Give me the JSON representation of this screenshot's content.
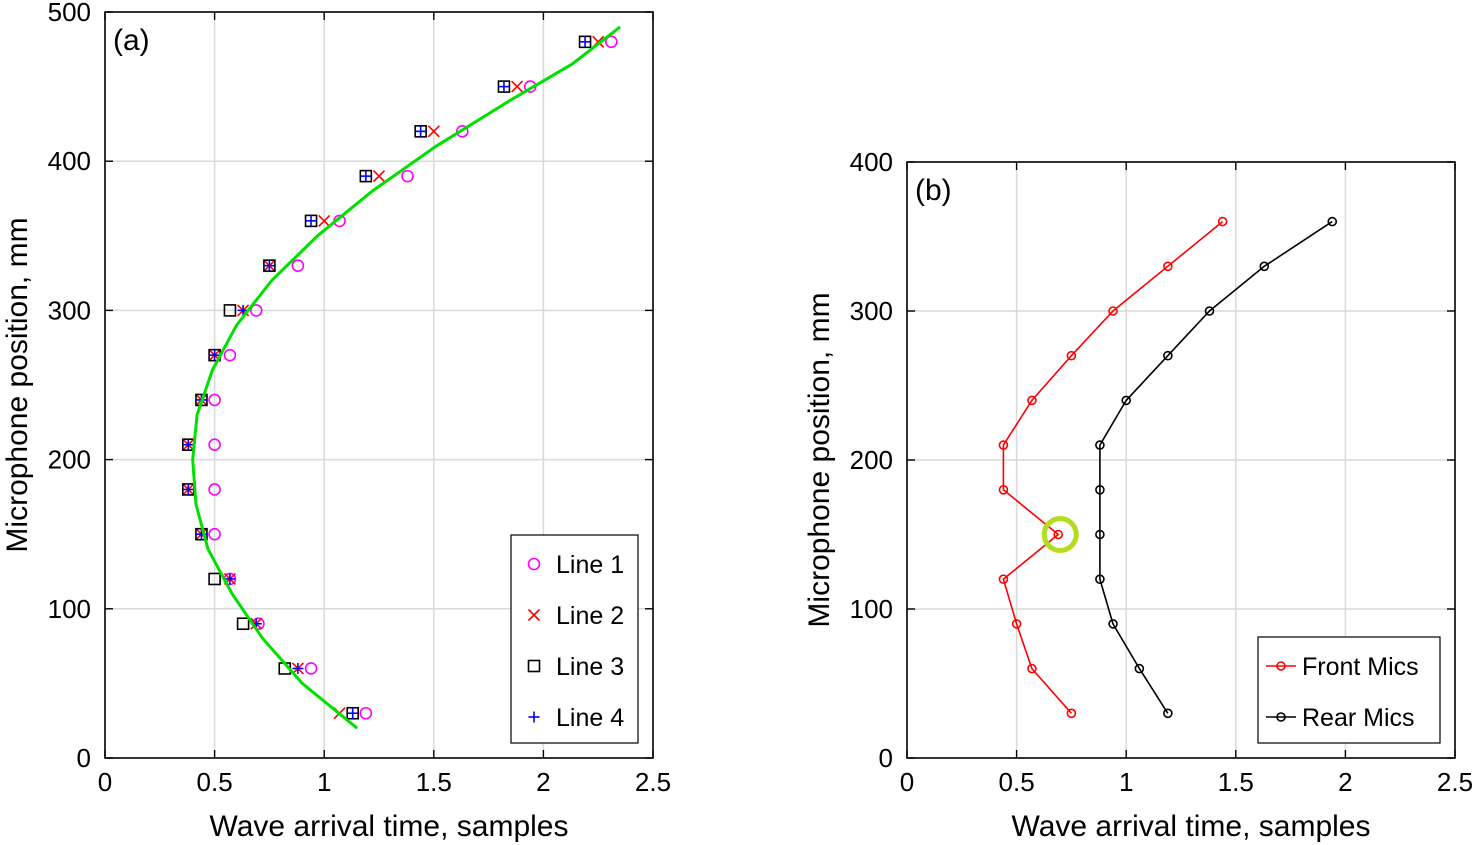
{
  "chart_data": [
    {
      "type": "scatter",
      "panel_label": "(a)",
      "xlabel": "Wave arrival  time, samples",
      "ylabel": "Microphone position, mm",
      "xlim": [
        0,
        2.5
      ],
      "ylim": [
        0,
        500
      ],
      "xticks": [
        "0",
        "0.5",
        "1",
        "1.5",
        "2",
        "2.5"
      ],
      "yticks": [
        "0",
        "100",
        "200",
        "300",
        "400",
        "500"
      ],
      "grid": true,
      "legend_position": "bottom-right",
      "series": [
        {
          "name": "Line 1",
          "marker": "circle",
          "color": "#ff00ff",
          "points": [
            [
              1.19,
              30
            ],
            [
              0.94,
              60
            ],
            [
              0.7,
              90
            ],
            [
              0.57,
              120
            ],
            [
              0.5,
              150
            ],
            [
              0.5,
              180
            ],
            [
              0.5,
              210
            ],
            [
              0.5,
              240
            ],
            [
              0.57,
              270
            ],
            [
              0.69,
              300
            ],
            [
              0.88,
              330
            ],
            [
              1.07,
              360
            ],
            [
              1.38,
              390
            ],
            [
              1.63,
              420
            ],
            [
              1.94,
              450
            ],
            [
              2.31,
              480
            ]
          ]
        },
        {
          "name": "Line 2",
          "marker": "x",
          "color": "#ff0000",
          "points": [
            [
              1.07,
              30
            ],
            [
              0.88,
              60
            ],
            [
              0.69,
              90
            ],
            [
              0.57,
              120
            ],
            [
              0.44,
              150
            ],
            [
              0.38,
              180
            ],
            [
              0.38,
              210
            ],
            [
              0.44,
              240
            ],
            [
              0.5,
              270
            ],
            [
              0.63,
              300
            ],
            [
              0.75,
              330
            ],
            [
              1.0,
              360
            ],
            [
              1.25,
              390
            ],
            [
              1.5,
              420
            ],
            [
              1.88,
              450
            ],
            [
              2.25,
              480
            ]
          ]
        },
        {
          "name": "Line 3",
          "marker": "square",
          "color": "#000000",
          "points": [
            [
              1.13,
              30
            ],
            [
              0.82,
              60
            ],
            [
              0.63,
              90
            ],
            [
              0.5,
              120
            ],
            [
              0.44,
              150
            ],
            [
              0.38,
              180
            ],
            [
              0.38,
              210
            ],
            [
              0.44,
              240
            ],
            [
              0.5,
              270
            ],
            [
              0.57,
              300
            ],
            [
              0.75,
              330
            ],
            [
              0.94,
              360
            ],
            [
              1.19,
              390
            ],
            [
              1.44,
              420
            ],
            [
              1.82,
              450
            ],
            [
              2.19,
              480
            ]
          ]
        },
        {
          "name": "Line 4",
          "marker": "plus",
          "color": "#0000ff",
          "points": [
            [
              1.13,
              30
            ],
            [
              0.88,
              60
            ],
            [
              0.69,
              90
            ],
            [
              0.57,
              120
            ],
            [
              0.44,
              150
            ],
            [
              0.38,
              180
            ],
            [
              0.38,
              210
            ],
            [
              0.44,
              240
            ],
            [
              0.5,
              270
            ],
            [
              0.63,
              300
            ],
            [
              0.75,
              330
            ],
            [
              0.94,
              360
            ],
            [
              1.19,
              390
            ],
            [
              1.44,
              420
            ],
            [
              1.82,
              450
            ],
            [
              2.19,
              480
            ]
          ]
        },
        {
          "name": "",
          "type": "line",
          "color": "#00e000",
          "points": [
            [
              1.15,
              20
            ],
            [
              0.9,
              50
            ],
            [
              0.72,
              80
            ],
            [
              0.58,
              110
            ],
            [
              0.47,
              140
            ],
            [
              0.415,
              170
            ],
            [
              0.4,
              200
            ],
            [
              0.42,
              230
            ],
            [
              0.49,
              260
            ],
            [
              0.6,
              290
            ],
            [
              0.76,
              320
            ],
            [
              0.97,
              350
            ],
            [
              1.22,
              380
            ],
            [
              1.51,
              410
            ],
            [
              1.84,
              440
            ],
            [
              2.13,
              465
            ],
            [
              2.35,
              490
            ]
          ]
        }
      ]
    },
    {
      "type": "line",
      "panel_label": "(b)",
      "xlabel": "Wave arrival  time, samples",
      "ylabel": "Microphone position, mm",
      "xlim": [
        0,
        2.5
      ],
      "ylim": [
        0,
        400
      ],
      "xticks": [
        "0",
        "0.5",
        "1",
        "1.5",
        "2",
        "2.5"
      ],
      "yticks": [
        "0",
        "100",
        "200",
        "300",
        "400"
      ],
      "grid": true,
      "legend_position": "bottom-right",
      "highlight": {
        "x": 0.69,
        "y": 150,
        "color": "#b5dc1e"
      },
      "series": [
        {
          "name": "Front Mics",
          "marker": "circle",
          "color": "#ff0000",
          "points": [
            [
              0.75,
              30
            ],
            [
              0.57,
              60
            ],
            [
              0.5,
              90
            ],
            [
              0.44,
              120
            ],
            [
              0.69,
              150
            ],
            [
              0.44,
              180
            ],
            [
              0.44,
              210
            ],
            [
              0.57,
              240
            ],
            [
              0.75,
              270
            ],
            [
              0.94,
              300
            ],
            [
              1.19,
              330
            ],
            [
              1.44,
              360
            ]
          ]
        },
        {
          "name": "Rear Mics",
          "marker": "circle",
          "color": "#000000",
          "points": [
            [
              1.19,
              30
            ],
            [
              1.06,
              60
            ],
            [
              0.94,
              90
            ],
            [
              0.88,
              120
            ],
            [
              0.88,
              150
            ],
            [
              0.88,
              180
            ],
            [
              0.88,
              210
            ],
            [
              1.0,
              240
            ],
            [
              1.19,
              270
            ],
            [
              1.38,
              300
            ],
            [
              1.63,
              330
            ],
            [
              1.94,
              360
            ]
          ]
        }
      ]
    }
  ]
}
